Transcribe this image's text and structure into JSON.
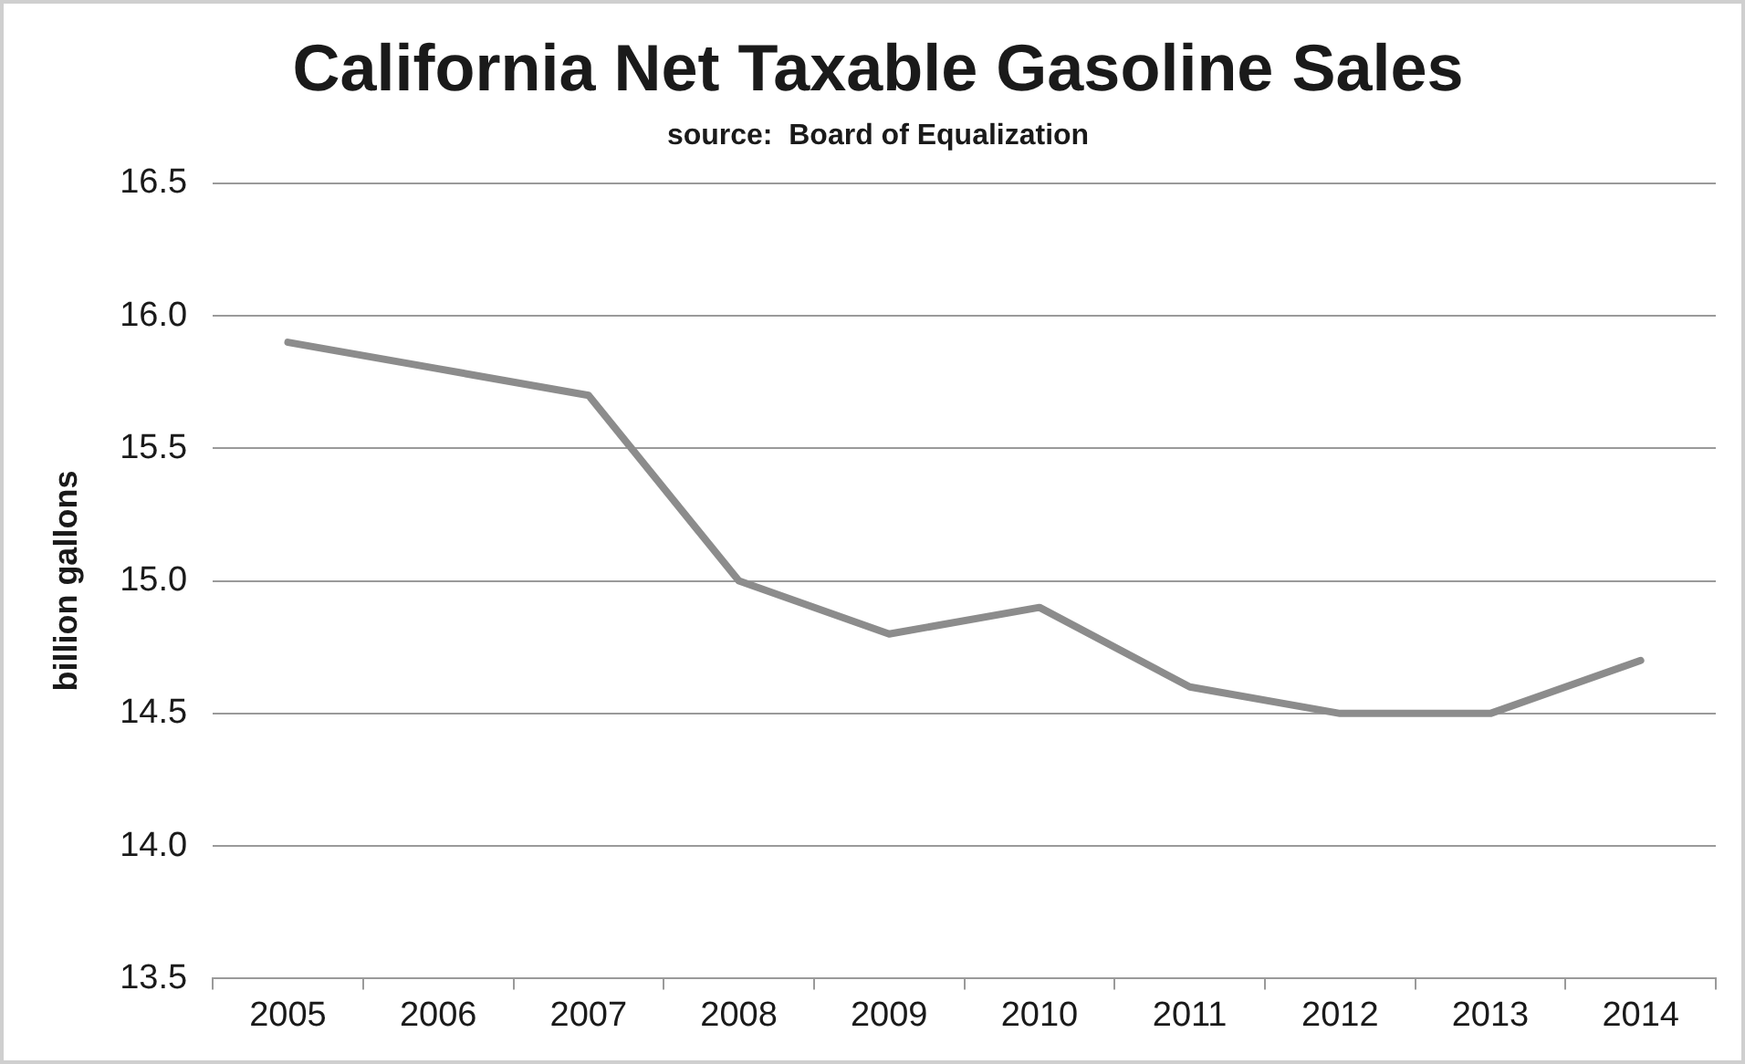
{
  "chart_data": {
    "type": "line",
    "title": "California Net Taxable Gasoline Sales",
    "subtitle": "source:  Board of Equalization",
    "ylabel": "billion gallons",
    "categories": [
      "2005",
      "2006",
      "2007",
      "2008",
      "2009",
      "2010",
      "2011",
      "2012",
      "2013",
      "2014"
    ],
    "series": [
      {
        "color": "#8c8c8c",
        "values": [
          15.9,
          15.8,
          15.7,
          15.0,
          14.8,
          14.9,
          14.6,
          14.5,
          14.5,
          14.7
        ]
      }
    ],
    "ylim": [
      13.5,
      16.5
    ],
    "yticks": [
      {
        "value": 13.5,
        "label": "13.5"
      },
      {
        "value": 14,
        "label": "14.0"
      },
      {
        "value": 14.5,
        "label": "14.5"
      },
      {
        "value": 15,
        "label": "15.0"
      },
      {
        "value": 15.5,
        "label": "15.5"
      },
      {
        "value": 16,
        "label": "16.0"
      },
      {
        "value": 16.5,
        "label": "16.5"
      }
    ],
    "grid": "y",
    "legend": false,
    "marker": "none",
    "line_style": "solid"
  }
}
